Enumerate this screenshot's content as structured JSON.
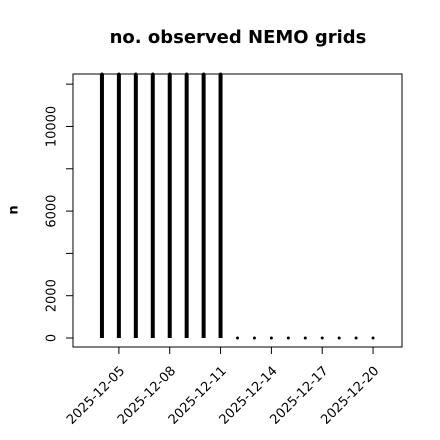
{
  "chart_data": {
    "type": "spike",
    "title": "no. observed NEMO grids",
    "y_label": "n",
    "x": [
      "2025-12-04",
      "2025-12-05",
      "2025-12-06",
      "2025-12-07",
      "2025-12-08",
      "2025-12-09",
      "2025-12-10",
      "2025-12-11",
      "2025-12-12",
      "2025-12-13",
      "2025-12-14",
      "2025-12-15",
      "2025-12-16",
      "2025-12-17",
      "2025-12-18",
      "2025-12-19",
      "2025-12-20"
    ],
    "values": [
      12480,
      12480,
      12480,
      12480,
      12480,
      12480,
      12480,
      12480,
      0,
      0,
      0,
      0,
      0,
      0,
      0,
      0,
      0
    ],
    "color": "#000000",
    "xlim": [
      "2025-12-02T07:00",
      "2025-12-21T17:00"
    ],
    "xticks": [
      "2025-12-05",
      "2025-12-08",
      "2025-12-11",
      "2025-12-14",
      "2025-12-17",
      "2025-12-20"
    ],
    "ylim": [
      -425,
      12480
    ],
    "yticks": [
      0,
      2000,
      6000,
      10000
    ],
    "yticks_minor": [
      4000,
      8000,
      12000
    ]
  }
}
